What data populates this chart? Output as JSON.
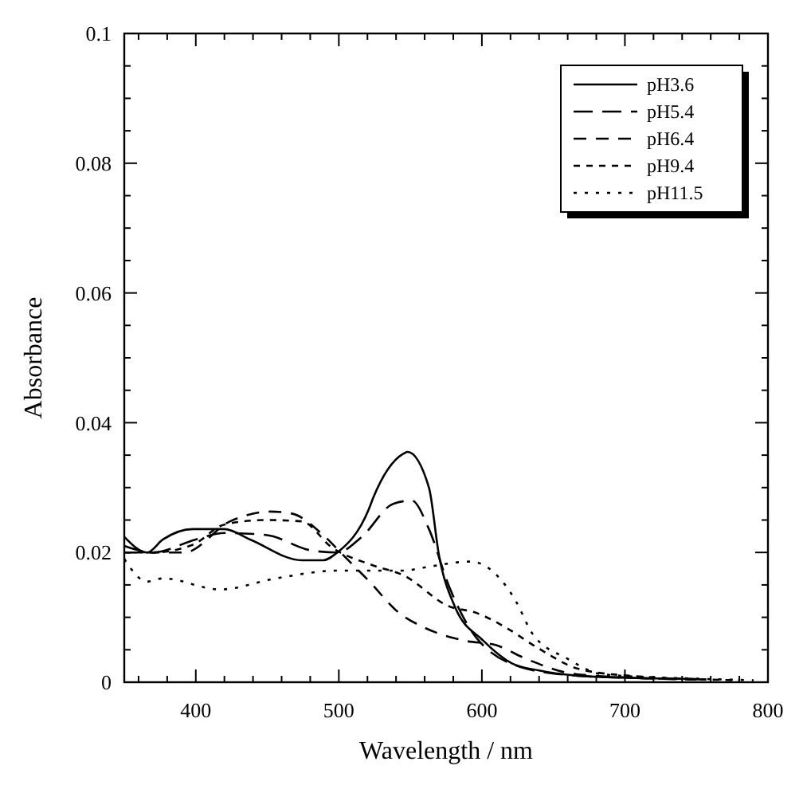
{
  "chart_data": {
    "type": "line",
    "xlabel": "Wavelength / nm",
    "ylabel": "Absorbance",
    "xlim": [
      350,
      800
    ],
    "ylim": [
      0,
      0.1
    ],
    "xticks": [
      {
        "value": 360,
        "label": null
      },
      {
        "value": 380,
        "label": null
      },
      400,
      {
        "value": 420,
        "label": null
      },
      {
        "value": 440,
        "label": null
      },
      {
        "value": 460,
        "label": null
      },
      {
        "value": 480,
        "label": null
      },
      500,
      {
        "value": 520,
        "label": null
      },
      {
        "value": 540,
        "label": null
      },
      {
        "value": 560,
        "label": null
      },
      {
        "value": 580,
        "label": null
      },
      600,
      {
        "value": 620,
        "label": null
      },
      {
        "value": 640,
        "label": null
      },
      {
        "value": 660,
        "label": null
      },
      {
        "value": 680,
        "label": null
      },
      700,
      {
        "value": 720,
        "label": null
      },
      {
        "value": 740,
        "label": null
      },
      {
        "value": 760,
        "label": null
      },
      {
        "value": 780,
        "label": null
      },
      800
    ],
    "yticks": [
      0,
      {
        "value": 0.005,
        "label": null
      },
      {
        "value": 0.01,
        "label": null
      },
      {
        "value": 0.015,
        "label": null
      },
      0.02,
      {
        "value": 0.025,
        "label": null
      },
      {
        "value": 0.03,
        "label": null
      },
      {
        "value": 0.035,
        "label": null
      },
      0.04,
      {
        "value": 0.045,
        "label": null
      },
      {
        "value": 0.05,
        "label": null
      },
      {
        "value": 0.055,
        "label": null
      },
      0.06,
      {
        "value": 0.065,
        "label": null
      },
      {
        "value": 0.07,
        "label": null
      },
      {
        "value": 0.075,
        "label": null
      },
      0.08,
      {
        "value": 0.085,
        "label": null
      },
      {
        "value": 0.09,
        "label": null
      },
      {
        "value": 0.095,
        "label": null
      },
      0.1
    ],
    "grid": false,
    "legend": "top right",
    "series": [
      {
        "name": "pH3.6",
        "color": "#000000",
        "line_style": "solid",
        "x": [
          350,
          366,
          377,
          398,
          420,
          438,
          474,
          489,
          499,
          521,
          524,
          545,
          548,
          563,
          570,
          581,
          601,
          621,
          640,
          667,
          700,
          750
        ],
        "values": [
          0.0224,
          0.02,
          0.022,
          0.0236,
          0.0236,
          0.022,
          0.0188,
          0.0188,
          0.02,
          0.0267,
          0.0284,
          0.0352,
          0.0355,
          0.03,
          0.0196,
          0.0117,
          0.0064,
          0.0029,
          0.0018,
          0.001,
          0.0007,
          0.0005
        ]
      },
      {
        "name": "pH5.4",
        "color": "#000000",
        "line_style": "dashed",
        "x": [
          350,
          370,
          400,
          420,
          449,
          481,
          499,
          516,
          538,
          551,
          563,
          577,
          596,
          631,
          667,
          700,
          760
        ],
        "values": [
          0.021,
          0.02,
          0.022,
          0.023,
          0.0227,
          0.0203,
          0.02,
          0.0224,
          0.0275,
          0.028,
          0.0236,
          0.0148,
          0.0069,
          0.0021,
          0.001,
          0.0007,
          0.0004
        ]
      },
      {
        "name": "pH6.4",
        "color": "#000000",
        "line_style": "dashed",
        "x": [
          350,
          370,
          392,
          424,
          452,
          467,
          489,
          503,
          521,
          542,
          560,
          588,
          610,
          631,
          667,
          750
        ],
        "values": [
          0.02,
          0.02,
          0.02,
          0.0248,
          0.0263,
          0.026,
          0.0227,
          0.0196,
          0.0156,
          0.0107,
          0.0084,
          0.0064,
          0.0057,
          0.0036,
          0.0012,
          0.0004
        ]
      },
      {
        "name": "pH9.4",
        "color": "#000000",
        "line_style": "dashed",
        "x": [
          350,
          370,
          398,
          420,
          449,
          474,
          495,
          524,
          545,
          577,
          596,
          617,
          639,
          667,
          703,
          780
        ],
        "values": [
          0.02,
          0.02,
          0.0212,
          0.0243,
          0.025,
          0.0248,
          0.0208,
          0.018,
          0.0165,
          0.0117,
          0.0107,
          0.0084,
          0.0053,
          0.0021,
          0.001,
          0.0003
        ]
      },
      {
        "name": "pH11.5",
        "color": "#000000",
        "line_style": "dotted",
        "x": [
          350,
          366,
          377,
          417,
          456,
          499,
          545,
          560,
          592,
          607,
          624,
          635,
          660,
          685,
          757,
          790
        ],
        "values": [
          0.019,
          0.0155,
          0.016,
          0.0143,
          0.016,
          0.0172,
          0.0172,
          0.0177,
          0.0186,
          0.0172,
          0.0124,
          0.0076,
          0.0036,
          0.0012,
          0.0005,
          0.0003
        ]
      }
    ]
  }
}
